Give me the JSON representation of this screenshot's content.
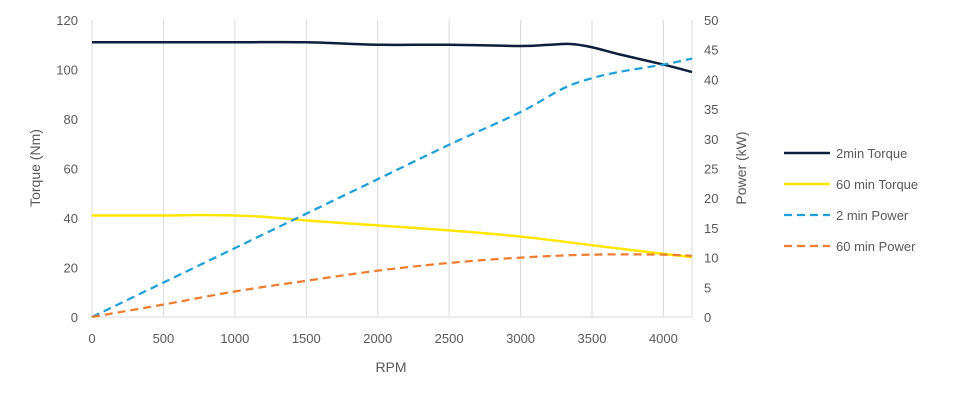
{
  "chart_data": {
    "type": "line",
    "xlabel": "RPM",
    "ylabel_left": "Torque (Nm)",
    "ylabel_right": "Power (kW)",
    "xlim": [
      0,
      4200
    ],
    "ylim_left": [
      0,
      120
    ],
    "ylim_right": [
      0,
      50
    ],
    "x_ticks": [
      0,
      500,
      1000,
      1500,
      2000,
      2500,
      3000,
      3500,
      4000
    ],
    "y_left_ticks": [
      0,
      20,
      40,
      60,
      80,
      100,
      120
    ],
    "y_right_ticks": [
      0,
      5,
      10,
      15,
      20,
      25,
      30,
      35,
      40,
      45,
      50
    ],
    "grid": "vertical",
    "legend_position": "right",
    "series": [
      {
        "name": "2min Torque",
        "axis": "left",
        "style": "solid",
        "color": "#0d1f3c",
        "points": [
          [
            0,
            111
          ],
          [
            500,
            111
          ],
          [
            1000,
            111
          ],
          [
            1500,
            111
          ],
          [
            2000,
            110
          ],
          [
            2500,
            110
          ],
          [
            3000,
            109.5
          ],
          [
            3200,
            110
          ],
          [
            3350,
            110.3
          ],
          [
            3500,
            109
          ],
          [
            3700,
            106
          ],
          [
            4000,
            102
          ],
          [
            4200,
            99
          ]
        ]
      },
      {
        "name": "60 min Torque",
        "axis": "left",
        "style": "solid",
        "color": "#ffe600",
        "points": [
          [
            0,
            41
          ],
          [
            500,
            41
          ],
          [
            750,
            41.2
          ],
          [
            1000,
            41
          ],
          [
            1200,
            40.5
          ],
          [
            1500,
            39
          ],
          [
            2000,
            37
          ],
          [
            2500,
            35
          ],
          [
            3000,
            32.5
          ],
          [
            3500,
            29
          ],
          [
            4000,
            25.5
          ],
          [
            4200,
            24.2
          ]
        ]
      },
      {
        "name": "2 min Power",
        "axis": "right",
        "style": "dashed",
        "color": "#1fa0d8",
        "points": [
          [
            0,
            0
          ],
          [
            500,
            5.8
          ],
          [
            1000,
            11.6
          ],
          [
            1500,
            17.4
          ],
          [
            2000,
            23.2
          ],
          [
            2500,
            29
          ],
          [
            3000,
            34.5
          ],
          [
            3300,
            38.5
          ],
          [
            3500,
            40.2
          ],
          [
            3700,
            41.3
          ],
          [
            4000,
            42.5
          ],
          [
            4200,
            43.5
          ]
        ]
      },
      {
        "name": "60 min Power",
        "axis": "right",
        "style": "dashed",
        "color": "#ed7d31",
        "points": [
          [
            0,
            0
          ],
          [
            500,
            2.1
          ],
          [
            1000,
            4.3
          ],
          [
            1500,
            6.1
          ],
          [
            2000,
            7.8
          ],
          [
            2500,
            9.1
          ],
          [
            3000,
            10
          ],
          [
            3500,
            10.5
          ],
          [
            4000,
            10.5
          ],
          [
            4200,
            10.3
          ]
        ]
      }
    ]
  }
}
